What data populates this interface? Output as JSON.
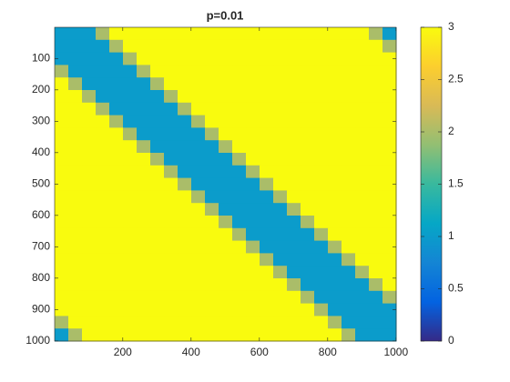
{
  "chart_data": {
    "type": "heatmap",
    "title": "p=0.01",
    "xlim": [
      0.5,
      1000.5
    ],
    "ylim": [
      0.5,
      1000.5
    ],
    "y_reversed": true,
    "xticks": [
      200,
      400,
      600,
      800,
      1000
    ],
    "yticks": [
      100,
      200,
      300,
      400,
      500,
      600,
      700,
      800,
      900,
      1000
    ],
    "clim": [
      0,
      3
    ],
    "cticks": [
      0,
      0.5,
      1,
      1.5,
      2,
      2.5,
      3
    ],
    "colormap": [
      "#352a87",
      "#0363e1",
      "#1485d4",
      "#06a7c6",
      "#38b99e",
      "#92bf73",
      "#d9ba56",
      "#fcce2e",
      "#f9fb0e"
    ],
    "z": [
      [
        1,
        1,
        1,
        2,
        3,
        3,
        3,
        3,
        3,
        3,
        3,
        3,
        3,
        3,
        3,
        3,
        3,
        3,
        3,
        3,
        3,
        3,
        3,
        2,
        1
      ],
      [
        1,
        1,
        1,
        1,
        2,
        3,
        3,
        3,
        3,
        3,
        3,
        3,
        3,
        3,
        3,
        3,
        3,
        3,
        3,
        3,
        3,
        3,
        3,
        3,
        2
      ],
      [
        1,
        1,
        1,
        1,
        1,
        2,
        3,
        3,
        3,
        3,
        3,
        3,
        3,
        3,
        3,
        3,
        3,
        3,
        3,
        3,
        3,
        3,
        3,
        3,
        3
      ],
      [
        2,
        1,
        1,
        1,
        1,
        1,
        2,
        3,
        3,
        3,
        3,
        3,
        3,
        3,
        3,
        3,
        3,
        3,
        3,
        3,
        3,
        3,
        3,
        3,
        3
      ],
      [
        3,
        2,
        1,
        1,
        1,
        1,
        1,
        2,
        3,
        3,
        3,
        3,
        3,
        3,
        3,
        3,
        3,
        3,
        3,
        3,
        3,
        3,
        3,
        3,
        3
      ],
      [
        3,
        3,
        2,
        1,
        1,
        1,
        1,
        1,
        2,
        3,
        3,
        3,
        3,
        3,
        3,
        3,
        3,
        3,
        3,
        3,
        3,
        3,
        3,
        3,
        3
      ],
      [
        3,
        3,
        3,
        2,
        1,
        1,
        1,
        1,
        1,
        2,
        3,
        3,
        3,
        3,
        3,
        3,
        3,
        3,
        3,
        3,
        3,
        3,
        3,
        3,
        3
      ],
      [
        3,
        3,
        3,
        3,
        2,
        1,
        1,
        1,
        1,
        1,
        2,
        3,
        3,
        3,
        3,
        3,
        3,
        3,
        3,
        3,
        3,
        3,
        3,
        3,
        3
      ],
      [
        3,
        3,
        3,
        3,
        3,
        2,
        1,
        1,
        1,
        1,
        1,
        2,
        3,
        3,
        3,
        3,
        3,
        3,
        3,
        3,
        3,
        3,
        3,
        3,
        3
      ],
      [
        3,
        3,
        3,
        3,
        3,
        3,
        2,
        1,
        1,
        1,
        1,
        1,
        2,
        3,
        3,
        3,
        3,
        3,
        3,
        3,
        3,
        3,
        3,
        3,
        3
      ],
      [
        3,
        3,
        3,
        3,
        3,
        3,
        3,
        2,
        1,
        1,
        1,
        1,
        1,
        2,
        3,
        3,
        3,
        3,
        3,
        3,
        3,
        3,
        3,
        3,
        3
      ],
      [
        3,
        3,
        3,
        3,
        3,
        3,
        3,
        3,
        2,
        1,
        1,
        1,
        1,
        1,
        2,
        3,
        3,
        3,
        3,
        3,
        3,
        3,
        3,
        3,
        3
      ],
      [
        3,
        3,
        3,
        3,
        3,
        3,
        3,
        3,
        3,
        2,
        1,
        1,
        1,
        1,
        1,
        2,
        3,
        3,
        3,
        3,
        3,
        3,
        3,
        3,
        3
      ],
      [
        3,
        3,
        3,
        3,
        3,
        3,
        3,
        3,
        3,
        3,
        2,
        1,
        1,
        1,
        1,
        1,
        2,
        3,
        3,
        3,
        3,
        3,
        3,
        3,
        3
      ],
      [
        3,
        3,
        3,
        3,
        3,
        3,
        3,
        3,
        3,
        3,
        3,
        2,
        1,
        1,
        1,
        1,
        1,
        2,
        3,
        3,
        3,
        3,
        3,
        3,
        3
      ],
      [
        3,
        3,
        3,
        3,
        3,
        3,
        3,
        3,
        3,
        3,
        3,
        3,
        2,
        1,
        1,
        1,
        1,
        1,
        2,
        3,
        3,
        3,
        3,
        3,
        3
      ],
      [
        3,
        3,
        3,
        3,
        3,
        3,
        3,
        3,
        3,
        3,
        3,
        3,
        3,
        2,
        1,
        1,
        1,
        1,
        1,
        2,
        3,
        3,
        3,
        3,
        3
      ],
      [
        3,
        3,
        3,
        3,
        3,
        3,
        3,
        3,
        3,
        3,
        3,
        3,
        3,
        3,
        2,
        1,
        1,
        1,
        1,
        1,
        2,
        3,
        3,
        3,
        3
      ],
      [
        3,
        3,
        3,
        3,
        3,
        3,
        3,
        3,
        3,
        3,
        3,
        3,
        3,
        3,
        3,
        2,
        1,
        1,
        1,
        1,
        1,
        2,
        3,
        3,
        3
      ],
      [
        3,
        3,
        3,
        3,
        3,
        3,
        3,
        3,
        3,
        3,
        3,
        3,
        3,
        3,
        3,
        3,
        2,
        1,
        1,
        1,
        1,
        1,
        2,
        3,
        3
      ],
      [
        3,
        3,
        3,
        3,
        3,
        3,
        3,
        3,
        3,
        3,
        3,
        3,
        3,
        3,
        3,
        3,
        3,
        2,
        1,
        1,
        1,
        1,
        1,
        2,
        3
      ],
      [
        3,
        3,
        3,
        3,
        3,
        3,
        3,
        3,
        3,
        3,
        3,
        3,
        3,
        3,
        3,
        3,
        3,
        3,
        2,
        1,
        1,
        1,
        1,
        1,
        2
      ],
      [
        3,
        3,
        3,
        3,
        3,
        3,
        3,
        3,
        3,
        3,
        3,
        3,
        3,
        3,
        3,
        3,
        3,
        3,
        3,
        2,
        1,
        1,
        1,
        1,
        1
      ],
      [
        2,
        3,
        3,
        3,
        3,
        3,
        3,
        3,
        3,
        3,
        3,
        3,
        3,
        3,
        3,
        3,
        3,
        3,
        3,
        3,
        2,
        1,
        1,
        1,
        1
      ],
      [
        1,
        2,
        3,
        3,
        3,
        3,
        3,
        3,
        3,
        3,
        3,
        3,
        3,
        3,
        3,
        3,
        3,
        3,
        3,
        3,
        3,
        2,
        1,
        1,
        1
      ]
    ]
  }
}
